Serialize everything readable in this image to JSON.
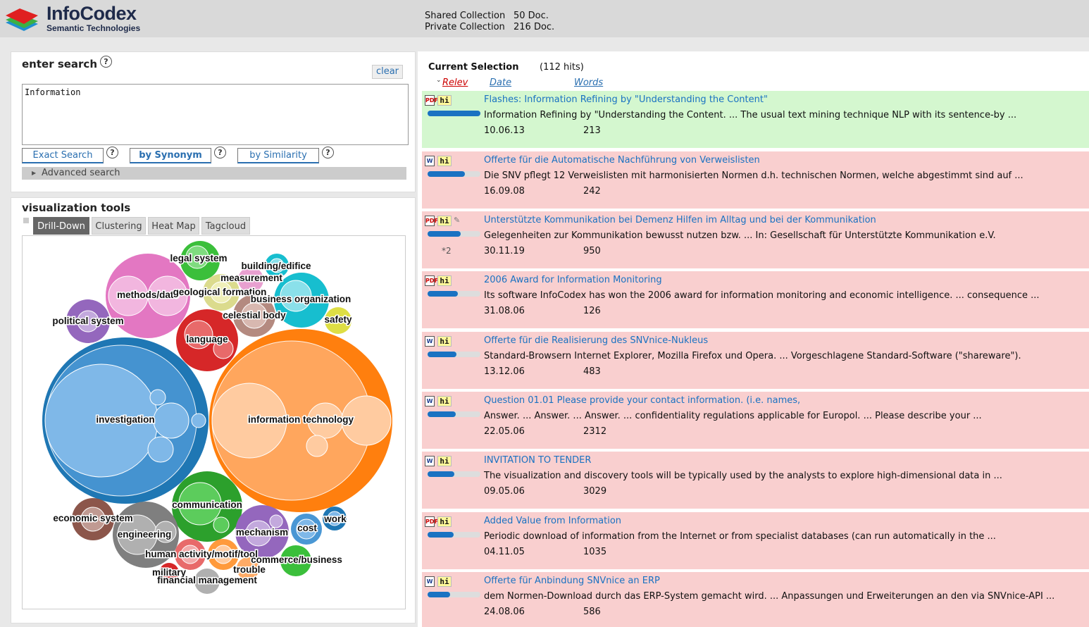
{
  "header": {
    "brand_name": "InfoCodex",
    "brand_sub": "Semantic Technologies",
    "shared_label": "Shared Collection",
    "shared_value": "50 Doc.",
    "private_label": "Private Collection",
    "private_value": "216 Doc."
  },
  "search": {
    "title": "enter search",
    "help": "?",
    "clear": "clear",
    "query": "Information",
    "exact": "Exact Search",
    "synonym": "by Synonym",
    "similarity": "by Similarity",
    "advanced": "Advanced search"
  },
  "viz": {
    "title": "visualization tools",
    "tabs": [
      "Drill-Down",
      "Clustering",
      "Heat Map",
      "Tagcloud"
    ],
    "bubbles": [
      {
        "label": "legal system",
        "color": "#3bbf3b"
      },
      {
        "label": "building/edifice",
        "color": "#17becf"
      },
      {
        "label": "measurement",
        "color": "#d6d65a"
      },
      {
        "label": "methods/date",
        "color": "#e377c2"
      },
      {
        "label": "geological formation",
        "color": "#dbdb8d"
      },
      {
        "label": "business organization",
        "color": "#17becf"
      },
      {
        "label": "political system",
        "color": "#9467bd"
      },
      {
        "label": "celestial body",
        "color": "#8c564b"
      },
      {
        "label": "safety",
        "color": "#bcbd22"
      },
      {
        "label": "language",
        "color": "#d62728"
      },
      {
        "label": "investigation",
        "color": "#1f77b4"
      },
      {
        "label": "information technology",
        "color": "#ff7f0e"
      },
      {
        "label": "communication",
        "color": "#2ca02c"
      },
      {
        "label": "economic system",
        "color": "#8c564b"
      },
      {
        "label": "engineering",
        "color": "#7f7f7f"
      },
      {
        "label": "mechanism",
        "color": "#9467bd"
      },
      {
        "label": "cost",
        "color": "#1f77b4"
      },
      {
        "label": "work",
        "color": "#1f77b4"
      },
      {
        "label": "human activity/motif/tool",
        "color": "#ff7f0e"
      },
      {
        "label": "commerce/business",
        "color": "#2ca02c"
      },
      {
        "label": "trouble",
        "color": "#ff7f0e"
      },
      {
        "label": "military",
        "color": "#d62728"
      },
      {
        "label": "financial management",
        "color": "#7f7f7f"
      }
    ]
  },
  "results": {
    "current_selection": "Current Selection",
    "hits": "(112 hits)",
    "sort_relev": "Relev",
    "sort_date": "Date",
    "sort_words": "Words",
    "items": [
      {
        "type": "pdf",
        "title": "Flashes: Information Refining by \"Understanding the Content\"",
        "snippet": "Information Refining by \"Understanding the Content. ... The usual text mining technique NLP with its sentence-by ...",
        "date": "10.06.13",
        "words": "213",
        "relevance": 1.0,
        "extra": ""
      },
      {
        "type": "word",
        "title": "Offerte für die Automatische Nachführung von Verweislisten",
        "snippet": "Die SNV pflegt 12 Verweislisten mit harmonisierten Normen d.h. technischen Normen, welche abgestimmt sind auf ...",
        "date": "16.09.08",
        "words": "242",
        "relevance": 0.7,
        "extra": ""
      },
      {
        "type": "pdf",
        "title": "Unterstützte Kommunikation bei Demenz Hilfen im Alltag und bei der Kommunikation",
        "snippet": "Gelegenheiten zur Kommunikation bewusst nutzen bzw. ... In: Gesellschaft für Unterstützte Kommunikation e.V.",
        "date": "30.11.19",
        "words": "950",
        "relevance": 0.62,
        "extra": "*2"
      },
      {
        "type": "pdf",
        "title": "2006 Award for Information Monitoring",
        "snippet": "Its software InfoCodex has won the 2006 award for information monitoring and economic intelligence. ... consequence ...",
        "date": "31.08.06",
        "words": "126",
        "relevance": 0.57,
        "extra": ""
      },
      {
        "type": "word",
        "title": "Offerte für die Realisierung des SNVnice-Nukleus",
        "snippet": "Standard-Browsern Internet Explorer, Mozilla Firefox und Opera. ... Vorgeschlagene Standard-Software (\"shareware\").",
        "date": "13.12.06",
        "words": "483",
        "relevance": 0.55,
        "extra": ""
      },
      {
        "type": "word",
        "title": "Question 01.01 Please provide your contact information. (i.e. names,",
        "snippet": "Answer. ... Answer. ... Answer. ... confidentiality regulations applicable for Europol. ... Please describe your ...",
        "date": "22.05.06",
        "words": "2312",
        "relevance": 0.53,
        "extra": ""
      },
      {
        "type": "word",
        "title": "INVITATION TO TENDER",
        "snippet": "The visualization and discovery tools will be typically used by the analysts to explore high-dimensional data in ...",
        "date": "09.05.06",
        "words": "3029",
        "relevance": 0.5,
        "extra": ""
      },
      {
        "type": "pdf",
        "title": "Added Value from Information",
        "snippet": "Periodic download of information from the Internet or from specialist databases (can run automatically in the ...",
        "date": "04.11.05",
        "words": "1035",
        "relevance": 0.49,
        "extra": ""
      },
      {
        "type": "word",
        "title": "Offerte für Anbindung SNVnice an ERP",
        "snippet": "dem Normen-Download durch das ERP-System gemacht wird. ... Anpassungen und Erweiterungen an den via SNVnice-API ...",
        "date": "24.08.06",
        "words": "586",
        "relevance": 0.43,
        "extra": ""
      }
    ]
  }
}
